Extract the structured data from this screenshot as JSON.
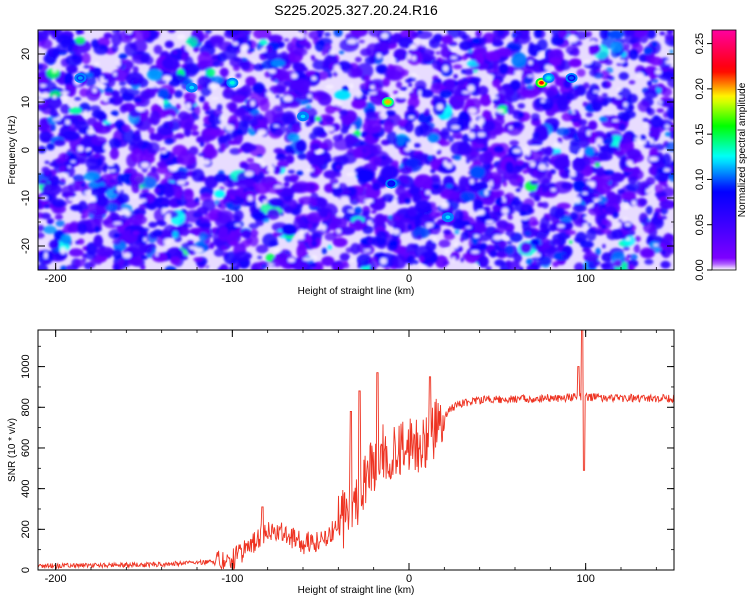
{
  "title": "S225.2025.327.20.24.R16",
  "chart_data": [
    {
      "type": "heatmap",
      "xlabel": "Height of straight line (km)",
      "ylabel": "Frequency (Hz)",
      "xlim": [
        -210,
        150
      ],
      "ylim": [
        -25,
        25
      ],
      "xticks": [
        "-200",
        "-100",
        "0",
        "100"
      ],
      "yticks": [
        "20",
        "10",
        "0",
        "-10",
        "-20"
      ],
      "colorbar": {
        "label": "Normalized spectral amplitude",
        "range": [
          0,
          0.265
        ],
        "ticks": [
          "0.00",
          "0.05",
          "0.10",
          "0.15",
          "0.20",
          "0.25"
        ],
        "colormap": [
          "#ffffff",
          "#8000ff",
          "#0000ff",
          "#00ffff",
          "#00ff00",
          "#ffff00",
          "#ff0000",
          "#ff00a0"
        ]
      },
      "hotspots": [
        {
          "x": 75,
          "y": 14,
          "value": 0.22
        },
        {
          "x": -12,
          "y": 10,
          "value": 0.2
        },
        {
          "x": -100,
          "y": 14,
          "value": 0.13
        },
        {
          "x": 79,
          "y": 15,
          "value": 0.13
        },
        {
          "x": -123,
          "y": 13,
          "value": 0.12
        },
        {
          "x": -60,
          "y": 7,
          "value": 0.12
        },
        {
          "x": -186,
          "y": 15,
          "value": 0.11
        },
        {
          "x": 22,
          "y": -14,
          "value": 0.12
        },
        {
          "x": 92,
          "y": 15,
          "value": 0.1
        },
        {
          "x": -10,
          "y": -7,
          "value": 0.09
        }
      ],
      "grid": false
    },
    {
      "type": "line",
      "xlabel": "Height of straight line (km)",
      "ylabel": "SNR (10 * v/v)",
      "xlim": [
        -210,
        150
      ],
      "ylim": [
        0,
        1180
      ],
      "xticks": [
        "-200",
        "-100",
        "0",
        "100"
      ],
      "yticks": [
        "0",
        "200",
        "400",
        "600",
        "800",
        "1000"
      ],
      "color": "#ee3322",
      "profile": {
        "x": [
          -210,
          -150,
          -120,
          -100,
          -90,
          -80,
          -70,
          -60,
          -50,
          -40,
          -30,
          -25,
          -20,
          -15,
          -10,
          -5,
          0,
          5,
          10,
          15,
          20,
          25,
          30,
          40,
          50,
          60,
          80,
          100,
          120,
          150
        ],
        "y": [
          20,
          25,
          35,
          50,
          120,
          200,
          180,
          130,
          150,
          220,
          320,
          430,
          520,
          600,
          570,
          580,
          610,
          630,
          600,
          690,
          760,
          800,
          820,
          835,
          840,
          840,
          845,
          850,
          845,
          845
        ]
      },
      "spikes": [
        {
          "x": -83,
          "y": 310
        },
        {
          "x": -18,
          "y": 970
        },
        {
          "x": -28,
          "y": 880
        },
        {
          "x": -33,
          "y": 780
        },
        {
          "x": 12,
          "y": 950
        },
        {
          "x": 98,
          "y": 1180
        },
        {
          "x": 99,
          "y": 490
        },
        {
          "x": 96,
          "y": 1000
        }
      ],
      "grid": false
    }
  ]
}
